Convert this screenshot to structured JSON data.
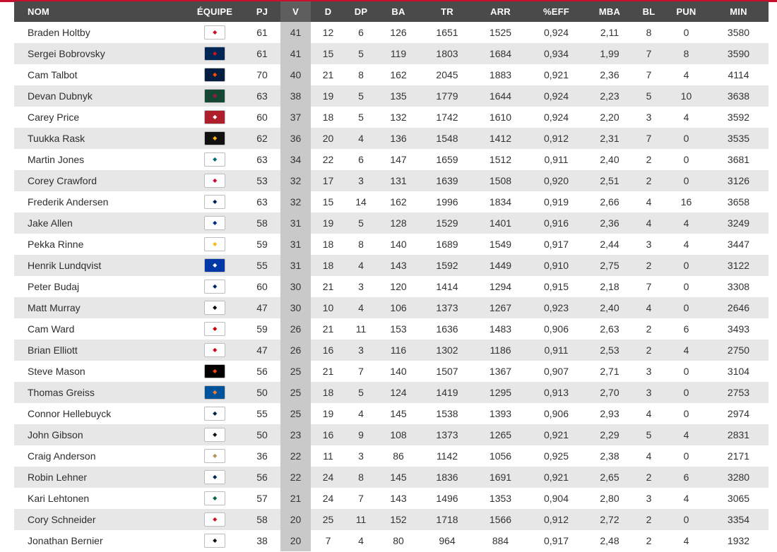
{
  "columns": {
    "name": "NOM",
    "team": "ÉQUIPE",
    "gp": "PJ",
    "w": "V",
    "l": "D",
    "otl": "DP",
    "ga": "BA",
    "sa": "TR",
    "sv": "ARR",
    "svpct": "%EFF",
    "gaa": "MBA",
    "so": "BL",
    "pim": "PUN",
    "min": "MIN"
  },
  "colors": {
    "header_bg": "#4a4a4a",
    "highlight_col": "#c9c9c9",
    "stripe": "#e7e7e7",
    "accent": "#c8102e"
  },
  "rows": [
    {
      "name": "Braden Holtby",
      "team_icon": "capitals-logo-icon",
      "logo_bg": "#ffffff",
      "logo_fg": "#c8102e",
      "gp": "61",
      "w": "41",
      "l": "12",
      "otl": "6",
      "ga": "126",
      "sa": "1651",
      "sv": "1525",
      "svpct": "0,924",
      "gaa": "2,11",
      "so": "8",
      "pim": "0",
      "min": "3580"
    },
    {
      "name": "Sergei Bobrovsky",
      "team_icon": "blue-jackets-logo-icon",
      "logo_bg": "#002654",
      "logo_fg": "#ce1126",
      "gp": "61",
      "w": "41",
      "l": "15",
      "otl": "5",
      "ga": "119",
      "sa": "1803",
      "sv": "1684",
      "svpct": "0,934",
      "gaa": "1,99",
      "so": "7",
      "pim": "8",
      "min": "3590"
    },
    {
      "name": "Cam Talbot",
      "team_icon": "oilers-logo-icon",
      "logo_bg": "#041e42",
      "logo_fg": "#ff4c00",
      "gp": "70",
      "w": "40",
      "l": "21",
      "otl": "8",
      "ga": "162",
      "sa": "2045",
      "sv": "1883",
      "svpct": "0,921",
      "gaa": "2,36",
      "so": "7",
      "pim": "4",
      "min": "4114"
    },
    {
      "name": "Devan Dubnyk",
      "team_icon": "wild-logo-icon",
      "logo_bg": "#154734",
      "logo_fg": "#a6192e",
      "gp": "63",
      "w": "38",
      "l": "19",
      "otl": "5",
      "ga": "135",
      "sa": "1779",
      "sv": "1644",
      "svpct": "0,924",
      "gaa": "2,23",
      "so": "5",
      "pim": "10",
      "min": "3638"
    },
    {
      "name": "Carey Price",
      "team_icon": "canadiens-logo-icon",
      "logo_bg": "#af1e2d",
      "logo_fg": "#ffffff",
      "gp": "60",
      "w": "37",
      "l": "18",
      "otl": "5",
      "ga": "132",
      "sa": "1742",
      "sv": "1610",
      "svpct": "0,924",
      "gaa": "2,20",
      "so": "3",
      "pim": "4",
      "min": "3592"
    },
    {
      "name": "Tuukka Rask",
      "team_icon": "bruins-logo-icon",
      "logo_bg": "#111111",
      "logo_fg": "#fcb514",
      "gp": "62",
      "w": "36",
      "l": "20",
      "otl": "4",
      "ga": "136",
      "sa": "1548",
      "sv": "1412",
      "svpct": "0,912",
      "gaa": "2,31",
      "so": "7",
      "pim": "0",
      "min": "3535"
    },
    {
      "name": "Martin Jones",
      "team_icon": "sharks-logo-icon",
      "logo_bg": "#ffffff",
      "logo_fg": "#006d75",
      "gp": "63",
      "w": "34",
      "l": "22",
      "otl": "6",
      "ga": "147",
      "sa": "1659",
      "sv": "1512",
      "svpct": "0,911",
      "gaa": "2,40",
      "so": "2",
      "pim": "0",
      "min": "3681"
    },
    {
      "name": "Corey Crawford",
      "team_icon": "blackhawks-logo-icon",
      "logo_bg": "#ffffff",
      "logo_fg": "#cf0a2c",
      "gp": "53",
      "w": "32",
      "l": "17",
      "otl": "3",
      "ga": "131",
      "sa": "1639",
      "sv": "1508",
      "svpct": "0,920",
      "gaa": "2,51",
      "so": "2",
      "pim": "0",
      "min": "3126"
    },
    {
      "name": "Frederik Andersen",
      "team_icon": "maple-leafs-logo-icon",
      "logo_bg": "#ffffff",
      "logo_fg": "#00205b",
      "gp": "63",
      "w": "32",
      "l": "15",
      "otl": "14",
      "ga": "162",
      "sa": "1996",
      "sv": "1834",
      "svpct": "0,919",
      "gaa": "2,66",
      "so": "4",
      "pim": "16",
      "min": "3658"
    },
    {
      "name": "Jake Allen",
      "team_icon": "blues-logo-icon",
      "logo_bg": "#ffffff",
      "logo_fg": "#002f87",
      "gp": "58",
      "w": "31",
      "l": "19",
      "otl": "5",
      "ga": "128",
      "sa": "1529",
      "sv": "1401",
      "svpct": "0,916",
      "gaa": "2,36",
      "so": "4",
      "pim": "4",
      "min": "3249"
    },
    {
      "name": "Pekka Rinne",
      "team_icon": "predators-logo-icon",
      "logo_bg": "#ffffff",
      "logo_fg": "#ffb81c",
      "gp": "59",
      "w": "31",
      "l": "18",
      "otl": "8",
      "ga": "140",
      "sa": "1689",
      "sv": "1549",
      "svpct": "0,917",
      "gaa": "2,44",
      "so": "3",
      "pim": "4",
      "min": "3447"
    },
    {
      "name": "Henrik Lundqvist",
      "team_icon": "rangers-logo-icon",
      "logo_bg": "#0038a8",
      "logo_fg": "#ffffff",
      "gp": "55",
      "w": "31",
      "l": "18",
      "otl": "4",
      "ga": "143",
      "sa": "1592",
      "sv": "1449",
      "svpct": "0,910",
      "gaa": "2,75",
      "so": "2",
      "pim": "0",
      "min": "3122"
    },
    {
      "name": "Peter Budaj",
      "team_icon": "lightning-logo-icon",
      "logo_bg": "#ffffff",
      "logo_fg": "#002868",
      "gp": "60",
      "w": "30",
      "l": "21",
      "otl": "3",
      "ga": "120",
      "sa": "1414",
      "sv": "1294",
      "svpct": "0,915",
      "gaa": "2,18",
      "so": "7",
      "pim": "0",
      "min": "3308"
    },
    {
      "name": "Matt Murray",
      "team_icon": "penguins-logo-icon",
      "logo_bg": "#ffffff",
      "logo_fg": "#000000",
      "gp": "47",
      "w": "30",
      "l": "10",
      "otl": "4",
      "ga": "106",
      "sa": "1373",
      "sv": "1267",
      "svpct": "0,923",
      "gaa": "2,40",
      "so": "4",
      "pim": "0",
      "min": "2646"
    },
    {
      "name": "Cam Ward",
      "team_icon": "hurricanes-logo-icon",
      "logo_bg": "#ffffff",
      "logo_fg": "#cc0000",
      "gp": "59",
      "w": "26",
      "l": "21",
      "otl": "11",
      "ga": "153",
      "sa": "1636",
      "sv": "1483",
      "svpct": "0,906",
      "gaa": "2,63",
      "so": "2",
      "pim": "6",
      "min": "3493"
    },
    {
      "name": "Brian Elliott",
      "team_icon": "flames-logo-icon",
      "logo_bg": "#ffffff",
      "logo_fg": "#d2001c",
      "gp": "47",
      "w": "26",
      "l": "16",
      "otl": "3",
      "ga": "116",
      "sa": "1302",
      "sv": "1186",
      "svpct": "0,911",
      "gaa": "2,53",
      "so": "2",
      "pim": "4",
      "min": "2750"
    },
    {
      "name": "Steve Mason",
      "team_icon": "flyers-logo-icon",
      "logo_bg": "#000000",
      "logo_fg": "#f74902",
      "gp": "56",
      "w": "25",
      "l": "21",
      "otl": "7",
      "ga": "140",
      "sa": "1507",
      "sv": "1367",
      "svpct": "0,907",
      "gaa": "2,71",
      "so": "3",
      "pim": "0",
      "min": "3104"
    },
    {
      "name": "Thomas Greiss",
      "team_icon": "islanders-logo-icon",
      "logo_bg": "#00539b",
      "logo_fg": "#f47d30",
      "gp": "50",
      "w": "25",
      "l": "18",
      "otl": "5",
      "ga": "124",
      "sa": "1419",
      "sv": "1295",
      "svpct": "0,913",
      "gaa": "2,70",
      "so": "3",
      "pim": "0",
      "min": "2753"
    },
    {
      "name": "Connor Hellebuyck",
      "team_icon": "jets-logo-icon",
      "logo_bg": "#ffffff",
      "logo_fg": "#041e42",
      "gp": "55",
      "w": "25",
      "l": "19",
      "otl": "4",
      "ga": "145",
      "sa": "1538",
      "sv": "1393",
      "svpct": "0,906",
      "gaa": "2,93",
      "so": "4",
      "pim": "0",
      "min": "2974"
    },
    {
      "name": "John Gibson",
      "team_icon": "ducks-logo-icon",
      "logo_bg": "#ffffff",
      "logo_fg": "#111111",
      "gp": "50",
      "w": "23",
      "l": "16",
      "otl": "9",
      "ga": "108",
      "sa": "1373",
      "sv": "1265",
      "svpct": "0,921",
      "gaa": "2,29",
      "so": "5",
      "pim": "4",
      "min": "2831"
    },
    {
      "name": "Craig Anderson",
      "team_icon": "senators-logo-icon",
      "logo_bg": "#ffffff",
      "logo_fg": "#b79257",
      "gp": "36",
      "w": "22",
      "l": "11",
      "otl": "3",
      "ga": "86",
      "sa": "1142",
      "sv": "1056",
      "svpct": "0,925",
      "gaa": "2,38",
      "so": "4",
      "pim": "0",
      "min": "2171"
    },
    {
      "name": "Robin Lehner",
      "team_icon": "sabres-logo-icon",
      "logo_bg": "#ffffff",
      "logo_fg": "#002654",
      "gp": "56",
      "w": "22",
      "l": "24",
      "otl": "8",
      "ga": "145",
      "sa": "1836",
      "sv": "1691",
      "svpct": "0,921",
      "gaa": "2,65",
      "so": "2",
      "pim": "6",
      "min": "3280"
    },
    {
      "name": "Kari Lehtonen",
      "team_icon": "stars-logo-icon",
      "logo_bg": "#ffffff",
      "logo_fg": "#006847",
      "gp": "57",
      "w": "21",
      "l": "24",
      "otl": "7",
      "ga": "143",
      "sa": "1496",
      "sv": "1353",
      "svpct": "0,904",
      "gaa": "2,80",
      "so": "3",
      "pim": "4",
      "min": "3065"
    },
    {
      "name": "Cory Schneider",
      "team_icon": "devils-logo-icon",
      "logo_bg": "#ffffff",
      "logo_fg": "#ce1126",
      "gp": "58",
      "w": "20",
      "l": "25",
      "otl": "11",
      "ga": "152",
      "sa": "1718",
      "sv": "1566",
      "svpct": "0,912",
      "gaa": "2,72",
      "so": "2",
      "pim": "0",
      "min": "3354"
    },
    {
      "name": "Jonathan Bernier",
      "team_icon": "ducks-logo-icon",
      "logo_bg": "#ffffff",
      "logo_fg": "#111111",
      "gp": "38",
      "w": "20",
      "l": "7",
      "otl": "4",
      "ga": "80",
      "sa": "964",
      "sv": "884",
      "svpct": "0,917",
      "gaa": "2,48",
      "so": "2",
      "pim": "4",
      "min": "1932"
    }
  ]
}
